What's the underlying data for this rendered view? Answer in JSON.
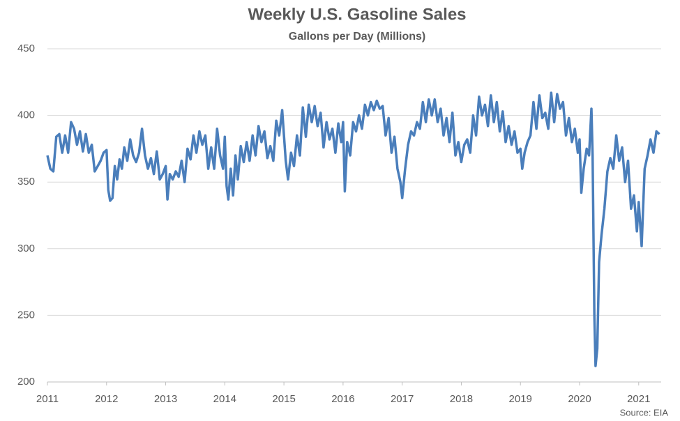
{
  "chart_data": {
    "type": "line",
    "title": "Weekly U.S. Gasoline Sales",
    "subtitle": "Gallons per Day (Millions)",
    "source": "Source: EIA",
    "color": "#4a7ebb",
    "grid": true,
    "xlim": [
      2011,
      2021.38
    ],
    "xticks": [
      2011,
      2012,
      2013,
      2014,
      2015,
      2016,
      2017,
      2018,
      2019,
      2020,
      2021
    ],
    "ylim": [
      200,
      450
    ],
    "yticks": [
      200,
      250,
      300,
      350,
      400,
      450
    ],
    "x": [
      2011.0,
      2011.05,
      2011.1,
      2011.15,
      2011.2,
      2011.25,
      2011.3,
      2011.35,
      2011.4,
      2011.45,
      2011.5,
      2011.55,
      2011.6,
      2011.65,
      2011.7,
      2011.75,
      2011.8,
      2011.85,
      2011.9,
      2011.95,
      2012.0,
      2012.03,
      2012.06,
      2012.1,
      2012.14,
      2012.18,
      2012.22,
      2012.26,
      2012.3,
      2012.35,
      2012.4,
      2012.45,
      2012.5,
      2012.55,
      2012.6,
      2012.65,
      2012.7,
      2012.75,
      2012.8,
      2012.85,
      2012.9,
      2012.95,
      2013.0,
      2013.03,
      2013.07,
      2013.12,
      2013.17,
      2013.22,
      2013.27,
      2013.32,
      2013.37,
      2013.42,
      2013.47,
      2013.52,
      2013.57,
      2013.62,
      2013.67,
      2013.72,
      2013.77,
      2013.82,
      2013.87,
      2013.92,
      2013.97,
      2014.0,
      2014.03,
      2014.06,
      2014.1,
      2014.14,
      2014.18,
      2014.22,
      2014.27,
      2014.32,
      2014.37,
      2014.42,
      2014.47,
      2014.52,
      2014.57,
      2014.62,
      2014.67,
      2014.72,
      2014.77,
      2014.82,
      2014.87,
      2014.92,
      2014.97,
      2015.03,
      2015.07,
      2015.12,
      2015.17,
      2015.22,
      2015.27,
      2015.32,
      2015.37,
      2015.42,
      2015.47,
      2015.52,
      2015.57,
      2015.62,
      2015.67,
      2015.72,
      2015.77,
      2015.82,
      2015.87,
      2015.92,
      2015.97,
      2016.0,
      2016.03,
      2016.07,
      2016.12,
      2016.17,
      2016.22,
      2016.27,
      2016.32,
      2016.37,
      2016.42,
      2016.47,
      2016.52,
      2016.57,
      2016.62,
      2016.67,
      2016.72,
      2016.77,
      2016.82,
      2016.87,
      2016.92,
      2016.97,
      2017.0,
      2017.05,
      2017.1,
      2017.15,
      2017.2,
      2017.25,
      2017.3,
      2017.35,
      2017.4,
      2017.45,
      2017.5,
      2017.55,
      2017.6,
      2017.65,
      2017.7,
      2017.75,
      2017.8,
      2017.85,
      2017.9,
      2017.95,
      2018.0,
      2018.05,
      2018.1,
      2018.15,
      2018.2,
      2018.25,
      2018.3,
      2018.35,
      2018.4,
      2018.45,
      2018.5,
      2018.55,
      2018.6,
      2018.65,
      2018.7,
      2018.75,
      2018.8,
      2018.85,
      2018.9,
      2018.95,
      2019.0,
      2019.03,
      2019.07,
      2019.12,
      2019.17,
      2019.22,
      2019.27,
      2019.32,
      2019.37,
      2019.42,
      2019.47,
      2019.52,
      2019.57,
      2019.62,
      2019.67,
      2019.72,
      2019.77,
      2019.82,
      2019.87,
      2019.92,
      2019.97,
      2020.0,
      2020.03,
      2020.07,
      2020.12,
      2020.16,
      2020.2,
      2020.22,
      2020.25,
      2020.27,
      2020.3,
      2020.33,
      2020.37,
      2020.42,
      2020.47,
      2020.52,
      2020.57,
      2020.62,
      2020.67,
      2020.72,
      2020.77,
      2020.82,
      2020.87,
      2020.92,
      2020.97,
      2021.0,
      2021.05,
      2021.1,
      2021.15,
      2021.2,
      2021.25,
      2021.3,
      2021.35
    ],
    "values": [
      370,
      360,
      358,
      384,
      386,
      372,
      385,
      372,
      395,
      390,
      378,
      388,
      373,
      386,
      372,
      378,
      358,
      362,
      366,
      372,
      374,
      344,
      336,
      338,
      362,
      352,
      367,
      360,
      376,
      366,
      382,
      370,
      365,
      372,
      390,
      370,
      360,
      368,
      356,
      373,
      352,
      356,
      362,
      337,
      356,
      352,
      358,
      354,
      366,
      350,
      375,
      367,
      385,
      372,
      388,
      378,
      385,
      360,
      376,
      360,
      390,
      370,
      360,
      384,
      347,
      337,
      360,
      340,
      370,
      352,
      377,
      365,
      380,
      366,
      385,
      370,
      392,
      380,
      388,
      368,
      377,
      366,
      396,
      385,
      404,
      366,
      352,
      372,
      362,
      385,
      370,
      406,
      384,
      408,
      395,
      407,
      392,
      402,
      376,
      395,
      382,
      390,
      372,
      394,
      380,
      395,
      343,
      380,
      370,
      395,
      388,
      400,
      390,
      408,
      400,
      410,
      404,
      411,
      405,
      407,
      385,
      398,
      372,
      384,
      360,
      350,
      338,
      360,
      378,
      388,
      385,
      395,
      390,
      410,
      395,
      412,
      400,
      412,
      395,
      405,
      385,
      398,
      380,
      402,
      370,
      380,
      365,
      378,
      382,
      372,
      400,
      385,
      414,
      400,
      408,
      392,
      415,
      395,
      410,
      388,
      403,
      380,
      392,
      378,
      388,
      372,
      375,
      360,
      372,
      380,
      385,
      410,
      390,
      415,
      398,
      402,
      390,
      417,
      395,
      416,
      405,
      410,
      385,
      398,
      380,
      390,
      372,
      382,
      342,
      360,
      375,
      370,
      405,
      370,
      250,
      212,
      225,
      290,
      310,
      330,
      358,
      368,
      360,
      385,
      366,
      376,
      350,
      366,
      330,
      340,
      313,
      335,
      302,
      360,
      370,
      382,
      372,
      388,
      386
    ]
  }
}
